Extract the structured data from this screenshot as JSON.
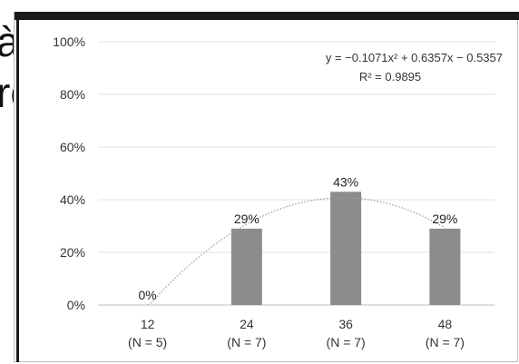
{
  "background_fragment": [
    "à",
    "ro"
  ],
  "chart_data": {
    "type": "bar",
    "categories": [
      "12\n(N = 5)",
      "24\n(N = 7)",
      "36\n(N = 7)",
      "48\n(N = 7)"
    ],
    "category_lines": [
      [
        "12",
        "(N = 5)"
      ],
      [
        "24",
        "(N = 7)"
      ],
      [
        "36",
        "(N = 7)"
      ],
      [
        "48",
        "(N = 7)"
      ]
    ],
    "values": [
      0,
      29,
      43,
      29
    ],
    "data_labels": [
      "0%",
      "29%",
      "43%",
      "29%"
    ],
    "ylim": [
      0,
      100
    ],
    "yticks": [
      "0%",
      "20%",
      "40%",
      "60%",
      "80%",
      "100%"
    ],
    "ytick_values": [
      0,
      20,
      40,
      60,
      80,
      100
    ],
    "grid": true,
    "bar_color": "#8c8c8c",
    "trendline": {
      "type": "polynomial-2",
      "coefficients": [
        -0.1071,
        0.6357,
        -0.5357
      ],
      "equation": "y = −0.1071x² + 0.6357x − 0.5357",
      "r_squared": "R² = 0.9895",
      "style": "dotted",
      "color": "#9a9a9a"
    },
    "title": "",
    "xlabel": "",
    "ylabel": ""
  }
}
